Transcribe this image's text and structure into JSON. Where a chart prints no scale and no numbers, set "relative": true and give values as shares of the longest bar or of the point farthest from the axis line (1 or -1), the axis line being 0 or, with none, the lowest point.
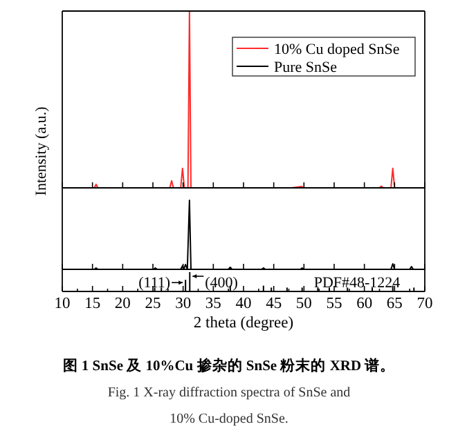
{
  "chart_data": [
    {
      "type": "line",
      "relative": true,
      "ylabel": "Intensity (a.u.)",
      "legend": "top right",
      "tick_labels": false,
      "xlim": [
        10,
        70
      ],
      "xticks": [
        10,
        15,
        20,
        25,
        30,
        35,
        40,
        45,
        50,
        55,
        60,
        65,
        70
      ],
      "series": [
        {
          "name": "10% Cu doped SnSe",
          "color": "#ff2a2a",
          "x": [
            10,
            15.3,
            15.6,
            15.9,
            27.8,
            28.1,
            28.4,
            29.6,
            29.9,
            30.2,
            30.8,
            31.05,
            31.3,
            48,
            49.6,
            50,
            62.5,
            62.8,
            63.1,
            64.4,
            64.7,
            65,
            70
          ],
          "values": [
            0,
            0,
            0.02,
            0,
            0,
            0.04,
            0,
            0,
            0.11,
            0,
            0,
            1,
            0,
            0,
            0.008,
            0,
            0,
            0.01,
            0,
            0,
            0.11,
            0,
            0
          ]
        }
      ]
    },
    {
      "type": "line",
      "relative": true,
      "tick_labels": false,
      "xlim": [
        10,
        70
      ],
      "xticks": [
        10,
        15,
        20,
        25,
        30,
        35,
        40,
        45,
        50,
        55,
        60,
        65,
        70
      ],
      "series": [
        {
          "name": "Pure SnSe",
          "color": "#000000",
          "x": [
            10,
            15.3,
            15.6,
            15.9,
            25.1,
            25.4,
            25.7,
            29.6,
            29.9,
            30.1,
            30.4,
            30.7,
            31.05,
            31.3,
            37.5,
            37.8,
            38.1,
            43.0,
            43.3,
            43.6,
            49.4,
            49.7,
            50,
            64.4,
            64.7,
            65,
            67.5,
            67.8,
            68.1,
            70
          ],
          "values": [
            0,
            0,
            0.02,
            0,
            0,
            0.02,
            0,
            0,
            0.05,
            0,
            0.07,
            0,
            1,
            0,
            0,
            0.03,
            0,
            0,
            0.02,
            0,
            0,
            0.02,
            0,
            0,
            0.08,
            0,
            0,
            0.04,
            0,
            0
          ]
        }
      ]
    },
    {
      "type": "bar",
      "relative": true,
      "tick_labels": "x",
      "xlabel": "2 theta (degree)",
      "xlim": [
        10,
        70
      ],
      "xticks": [
        10,
        {
          "value": 12.5,
          "label": null
        },
        15,
        {
          "value": 17.5,
          "label": null
        },
        20,
        {
          "value": 22.5,
          "label": null
        },
        25,
        {
          "value": 27.5,
          "label": null
        },
        30,
        {
          "value": 32.5,
          "label": null
        },
        35,
        {
          "value": 37.5,
          "label": null
        },
        40,
        {
          "value": 42.5,
          "label": null
        },
        45,
        {
          "value": 47.5,
          "label": null
        },
        50,
        {
          "value": 52.5,
          "label": null
        },
        55,
        {
          "value": 57.5,
          "label": null
        },
        60,
        {
          "value": 62.5,
          "label": null
        },
        65,
        {
          "value": 67.5,
          "label": null
        },
        70
      ],
      "x": [
        25.3,
        26.4,
        30.4,
        31.1,
        37.8,
        43.3,
        44.6,
        47.2,
        49.7,
        52.3,
        54.2,
        57.2,
        61.3,
        64.7,
        68.2
      ],
      "values": [
        0.2,
        0.2,
        0.6,
        1,
        0.3,
        0.3,
        0.2,
        0.2,
        0.2,
        0.2,
        0.2,
        0.2,
        0.2,
        0.3,
        0.2
      ],
      "color": "#000000",
      "annotations": [
        {
          "text": "(111)",
          "x": 30.4,
          "y": 0.6
        },
        {
          "text": "(400)",
          "x": 31.1,
          "y": 1
        },
        "PDF#48-1224",
        "图 1   SnSe 及 10%Cu 掺杂的 SnSe 粉末的 XRD 谱。",
        "Fig. 1   X-ray diffraction spectra of SnSe and",
        "10%  Cu-doped SnSe."
      ]
    }
  ]
}
